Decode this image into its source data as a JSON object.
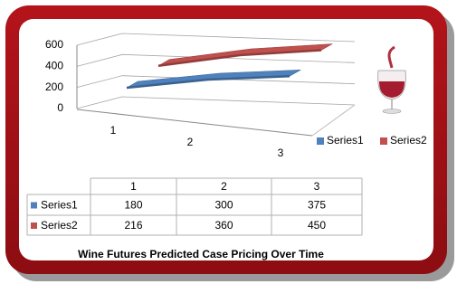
{
  "chart_data": {
    "type": "line3d",
    "title": "Wine Futures Predicted Case Pricing Over Time",
    "categories": [
      "1",
      "2",
      "3"
    ],
    "series": [
      {
        "name": "Series1",
        "color": "#4f81bd",
        "values": [
          180,
          300,
          375
        ]
      },
      {
        "name": "Series2",
        "color": "#c0504d",
        "values": [
          216,
          360,
          450
        ]
      }
    ],
    "ylim": [
      0,
      600
    ],
    "yticks": [
      0,
      200,
      400,
      600
    ],
    "grid": true,
    "legend": "right"
  }
}
